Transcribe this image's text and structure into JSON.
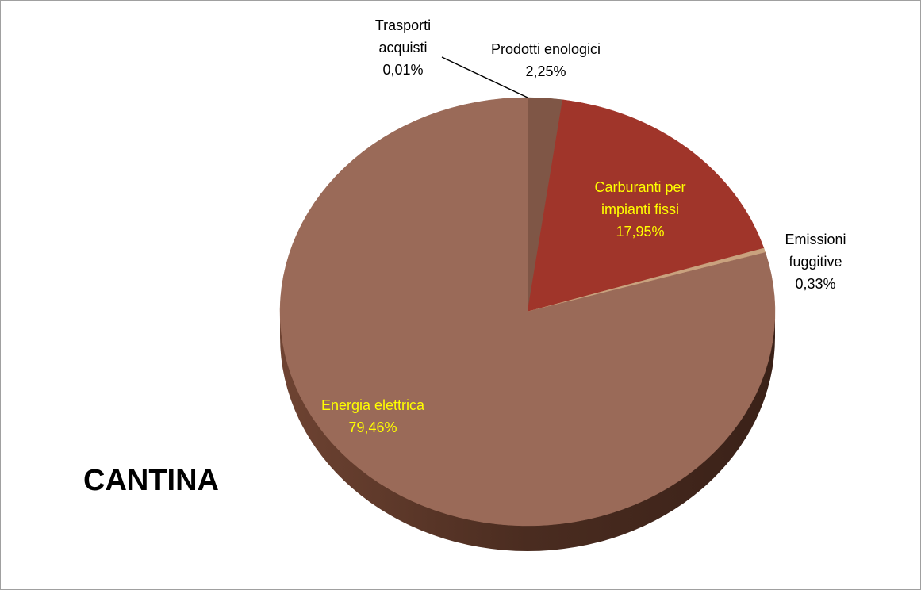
{
  "chart_data": {
    "type": "pie",
    "title": "CANTINA",
    "categories": [
      "Trasporti acquisti",
      "Prodotti enologici",
      "Carburanti per impianti fissi",
      "Emissioni fuggitive",
      "Energia elettrica"
    ],
    "values": [
      0.01,
      2.25,
      17.95,
      0.33,
      79.46
    ],
    "value_labels": [
      "0,01%",
      "2,25%",
      "17,95%",
      "0,33%",
      "79,46%"
    ],
    "colors": [
      "#9a6a58",
      "#7f5646",
      "#a0352a",
      "#c9a27e",
      "#9a6a58"
    ]
  }
}
